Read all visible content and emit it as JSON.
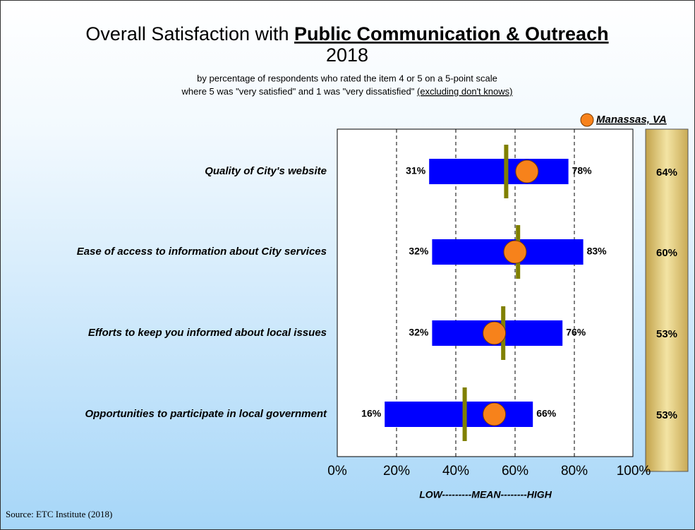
{
  "chart_data": {
    "type": "range",
    "title": {
      "prefix": "Overall Satisfaction with ",
      "emphasis": "Public Communication & Outreach",
      "year": "2018"
    },
    "subtitle": {
      "line1": "by percentage of respondents who rated the item 4 or 5 on a 5-point scale",
      "line2": "where 5 was \"very satisfied\" and 1 was \"very dissatisfied\" ",
      "line2_underlined": "(excluding don't knows)"
    },
    "categories": [
      "Quality of City's website",
      "Ease of access to information about City services",
      "Efforts to keep you informed about local issues",
      "Opportunities to participate in local government"
    ],
    "range": {
      "low": [
        31,
        32,
        32,
        16
      ],
      "low_labels": [
        "31%",
        "32%",
        "32%",
        "16%"
      ],
      "high": [
        78,
        83,
        76,
        66
      ],
      "high_labels": [
        "78%",
        "83%",
        "76%",
        "66%"
      ],
      "color": "#0000ff"
    },
    "mean": {
      "values": [
        57,
        61,
        56,
        43
      ],
      "color": "#808000"
    },
    "series": [
      {
        "name": "Manassas, VA",
        "color": "#f7821b",
        "values": [
          64,
          60,
          53,
          53
        ],
        "value_labels": [
          "64%",
          "60%",
          "53%",
          "53%"
        ]
      }
    ],
    "xlim": [
      0,
      100
    ],
    "xticks": [
      {
        "value": 0,
        "label": "0%"
      },
      {
        "value": 20,
        "label": "20%"
      },
      {
        "value": 40,
        "label": "40%"
      },
      {
        "value": 60,
        "label": "60%"
      },
      {
        "value": 80,
        "label": "80%"
      },
      {
        "value": 100,
        "label": "100%"
      }
    ],
    "grid": true,
    "xlabel": "LOW---------MEAN--------HIGH",
    "source": "Source:  ETC Institute (2018)"
  }
}
